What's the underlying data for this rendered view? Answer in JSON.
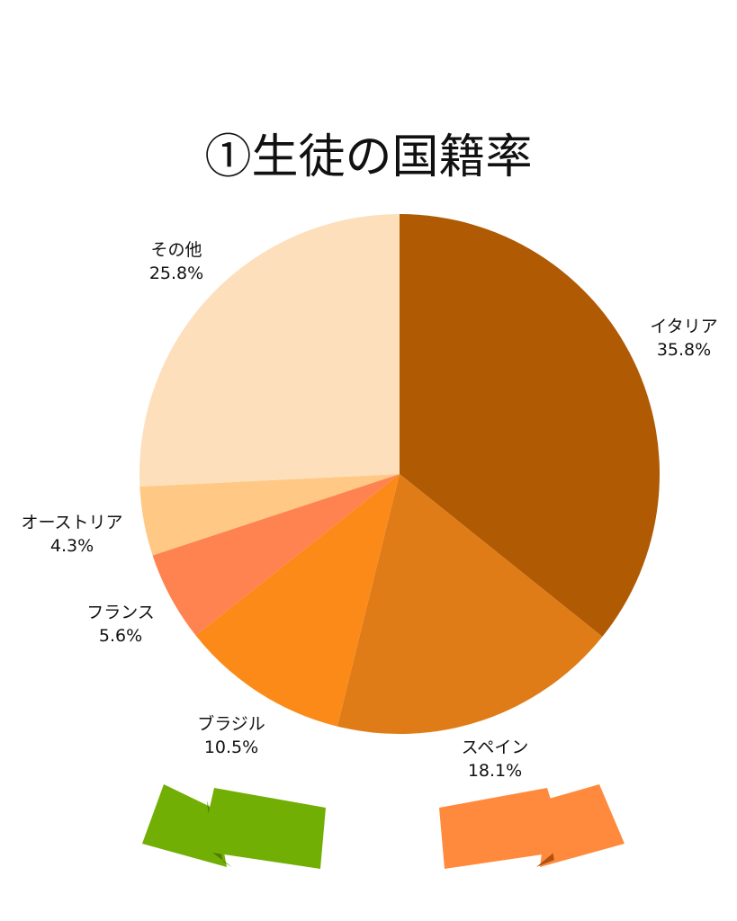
{
  "title": "①生徒の国籍率",
  "chart_data": {
    "type": "pie",
    "title": "①生徒の国籍率",
    "unit": "%",
    "slices": [
      {
        "label": "イタリア",
        "value": 35.8,
        "display": "35.8%",
        "color": "#B05A03"
      },
      {
        "label": "スペイン",
        "value": 18.1,
        "display": "18.1%",
        "color": "#E07C17"
      },
      {
        "label": "ブラジル",
        "value": 10.5,
        "display": "10.5%",
        "color": "#FB8A18"
      },
      {
        "label": "フランス",
        "value": 5.6,
        "display": "5.6%",
        "color": "#FF8351"
      },
      {
        "label": "オーストリア",
        "value": 4.3,
        "display": "4.3%",
        "color": "#FFC985"
      },
      {
        "label": "その他",
        "value": 25.8,
        "display": "25.8%",
        "color": "#FDDFBB"
      }
    ]
  },
  "decorations": {
    "left_ribbon_color": "#72AF05",
    "right_ribbon_color": "#FF8A3D"
  }
}
